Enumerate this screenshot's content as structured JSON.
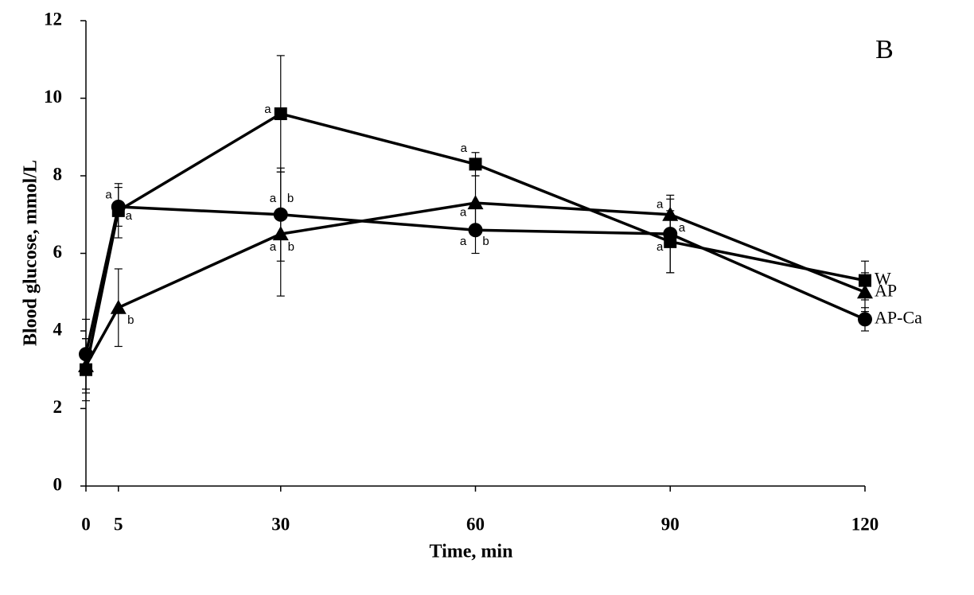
{
  "chart_data": {
    "type": "line",
    "x_label": "Time, min",
    "y_label": "Blood glucose, mmol/L",
    "x": [
      0,
      5,
      30,
      60,
      90,
      120
    ],
    "xlim": [
      0,
      120
    ],
    "xticks": [
      0,
      5,
      30,
      60,
      90,
      120
    ],
    "ylim": [
      0,
      12
    ],
    "yticks": [
      0,
      2,
      4,
      6,
      8,
      10,
      12
    ],
    "series": [
      {
        "name": "W",
        "color": "#000000",
        "marker": "square",
        "values": [
          3.0,
          7.1,
          9.6,
          8.3,
          6.3,
          5.3
        ],
        "errors": [
          0.8,
          0.7,
          1.5,
          0.3,
          0.8,
          0.5
        ]
      },
      {
        "name": "AP",
        "color": "#000000",
        "marker": "triangle",
        "values": [
          3.1,
          4.6,
          6.5,
          7.3,
          7.0,
          5.0
        ],
        "errors": [
          0.7,
          1.0,
          1.6,
          0.7,
          0.4,
          0.5
        ]
      },
      {
        "name": "AP-Ca",
        "color": "#000000",
        "marker": "circle",
        "values": [
          3.4,
          7.2,
          7.0,
          6.6,
          6.5,
          4.3
        ],
        "errors": [
          0.9,
          0.5,
          1.2,
          0.6,
          1.0,
          0.3
        ]
      }
    ],
    "annotations": [
      {
        "text": "B",
        "x": 123,
        "y": 11.2
      },
      {
        "text": "a",
        "x": 3.5,
        "y": 7.5
      },
      {
        "text": "a",
        "x": 6.6,
        "y": 6.95
      },
      {
        "text": "a",
        "x": 28.0,
        "y": 9.7
      },
      {
        "text": "a",
        "x": 28.8,
        "y": 7.4
      },
      {
        "text": "b",
        "x": 31.5,
        "y": 7.4
      },
      {
        "text": "a",
        "x": 28.8,
        "y": 6.15
      },
      {
        "text": "b",
        "x": 31.6,
        "y": 6.15
      },
      {
        "text": "b",
        "x": 6.9,
        "y": 4.27
      },
      {
        "text": "a",
        "x": 58.2,
        "y": 8.7
      },
      {
        "text": "a",
        "x": 58.1,
        "y": 7.05
      },
      {
        "text": "a",
        "x": 58.1,
        "y": 6.3
      },
      {
        "text": "b",
        "x": 61.6,
        "y": 6.3
      },
      {
        "text": "a",
        "x": 88.4,
        "y": 7.25
      },
      {
        "text": "a",
        "x": 91.8,
        "y": 6.65
      },
      {
        "text": "a",
        "x": 88.4,
        "y": 6.15
      }
    ]
  }
}
